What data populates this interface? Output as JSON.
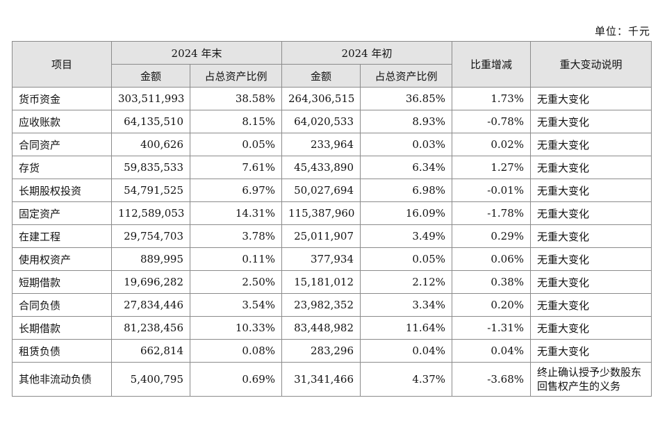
{
  "unit_label": "单位：千元",
  "header": {
    "item": "项目",
    "end_group": "2024 年末",
    "begin_group": "2024 年初",
    "change": "比重增减",
    "note": "重大变动说明",
    "amount": "金额",
    "ratio": "占总资产比例"
  },
  "rows": [
    {
      "name": "货币资金",
      "end_amount": "303,511,993",
      "end_ratio": "38.58%",
      "begin_amount": "264,306,515",
      "begin_ratio": "36.85%",
      "change": "1.73%",
      "note": "无重大变化"
    },
    {
      "name": "应收账款",
      "end_amount": "64,135,510",
      "end_ratio": "8.15%",
      "begin_amount": "64,020,533",
      "begin_ratio": "8.93%",
      "change": "-0.78%",
      "note": "无重大变化"
    },
    {
      "name": "合同资产",
      "end_amount": "400,626",
      "end_ratio": "0.05%",
      "begin_amount": "233,964",
      "begin_ratio": "0.03%",
      "change": "0.02%",
      "note": "无重大变化"
    },
    {
      "name": "存货",
      "end_amount": "59,835,533",
      "end_ratio": "7.61%",
      "begin_amount": "45,433,890",
      "begin_ratio": "6.34%",
      "change": "1.27%",
      "note": "无重大变化"
    },
    {
      "name": "长期股权投资",
      "end_amount": "54,791,525",
      "end_ratio": "6.97%",
      "begin_amount": "50,027,694",
      "begin_ratio": "6.98%",
      "change": "-0.01%",
      "note": "无重大变化"
    },
    {
      "name": "固定资产",
      "end_amount": "112,589,053",
      "end_ratio": "14.31%",
      "begin_amount": "115,387,960",
      "begin_ratio": "16.09%",
      "change": "-1.78%",
      "note": "无重大变化"
    },
    {
      "name": "在建工程",
      "end_amount": "29,754,703",
      "end_ratio": "3.78%",
      "begin_amount": "25,011,907",
      "begin_ratio": "3.49%",
      "change": "0.29%",
      "note": "无重大变化"
    },
    {
      "name": "使用权资产",
      "end_amount": "889,995",
      "end_ratio": "0.11%",
      "begin_amount": "377,934",
      "begin_ratio": "0.05%",
      "change": "0.06%",
      "note": "无重大变化"
    },
    {
      "name": "短期借款",
      "end_amount": "19,696,282",
      "end_ratio": "2.50%",
      "begin_amount": "15,181,012",
      "begin_ratio": "2.12%",
      "change": "0.38%",
      "note": "无重大变化"
    },
    {
      "name": "合同负债",
      "end_amount": "27,834,446",
      "end_ratio": "3.54%",
      "begin_amount": "23,982,352",
      "begin_ratio": "3.34%",
      "change": "0.20%",
      "note": "无重大变化"
    },
    {
      "name": "长期借款",
      "end_amount": "81,238,456",
      "end_ratio": "10.33%",
      "begin_amount": "83,448,982",
      "begin_ratio": "11.64%",
      "change": "-1.31%",
      "note": "无重大变化"
    },
    {
      "name": "租赁负债",
      "end_amount": "662,814",
      "end_ratio": "0.08%",
      "begin_amount": "283,296",
      "begin_ratio": "0.04%",
      "change": "0.04%",
      "note": "无重大变化"
    },
    {
      "name": "其他非流动负债",
      "end_amount": "5,400,795",
      "end_ratio": "0.69%",
      "begin_amount": "31,341,466",
      "begin_ratio": "4.37%",
      "change": "-3.68%",
      "note": "终止确认授予少数股东回售权产生的义务"
    }
  ]
}
